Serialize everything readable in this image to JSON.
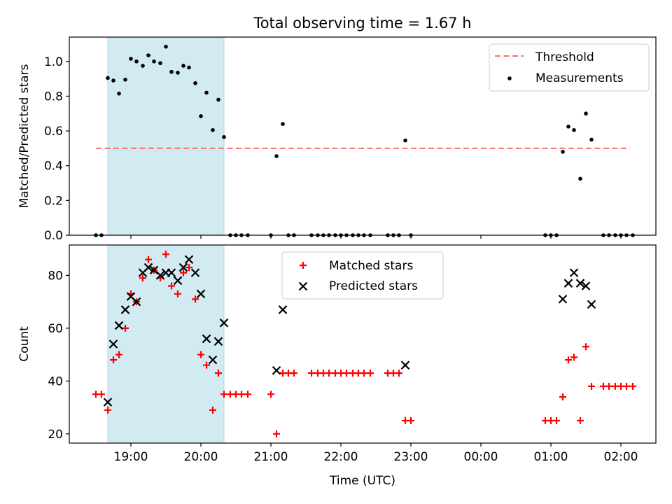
{
  "title": "Total observing time = 1.67 h",
  "colors": {
    "threshold": "#ff7070",
    "measurement": "#000000",
    "matched": "#ff0000",
    "predicted": "#000000",
    "shade": "#add8e6"
  },
  "chart_data": [
    {
      "type": "scatter",
      "ylabel": "Matched/Predicted stars",
      "xlabel": "",
      "ylim": [
        0,
        1.14
      ],
      "xlim": [
        18.12,
        26.5
      ],
      "yticks": [
        0.0,
        0.2,
        0.4,
        0.6,
        0.8,
        1.0
      ],
      "yticklabels": [
        "0.0",
        "0.2",
        "0.4",
        "0.6",
        "0.8",
        "1.0"
      ],
      "shaded_region": [
        18.67,
        20.33
      ],
      "threshold": {
        "name": "Threshold",
        "y": 0.5,
        "x": [
          18.5,
          26.13
        ]
      },
      "legend": {
        "position": "top-right",
        "entries": [
          "Threshold",
          "Measurements"
        ]
      },
      "series": [
        {
          "name": "Measurements",
          "x": [
            18.5,
            18.58,
            18.67,
            18.75,
            18.83,
            18.92,
            19.0,
            19.08,
            19.17,
            19.25,
            19.33,
            19.42,
            19.5,
            19.58,
            19.67,
            19.75,
            19.83,
            19.92,
            20.0,
            20.08,
            20.17,
            20.25,
            20.33,
            20.42,
            20.5,
            20.58,
            20.67,
            21.0,
            21.08,
            21.17,
            21.25,
            21.33,
            21.58,
            21.67,
            21.75,
            21.83,
            21.92,
            22.0,
            22.08,
            22.17,
            22.25,
            22.33,
            22.42,
            22.67,
            22.75,
            22.83,
            22.92,
            23.0,
            24.92,
            25.0,
            25.08,
            25.17,
            25.25,
            25.33,
            25.42,
            25.5,
            25.58,
            25.75,
            25.83,
            25.92,
            26.0,
            26.08,
            26.17
          ],
          "y": [
            0,
            0,
            0.905,
            0.89,
            0.815,
            0.895,
            1.015,
            1.0,
            0.975,
            1.035,
            1.0,
            0.99,
            1.085,
            0.94,
            0.935,
            0.975,
            0.965,
            0.875,
            0.685,
            0.82,
            0.605,
            0.78,
            0.565,
            0,
            0,
            0,
            0,
            0,
            0.455,
            0.64,
            0,
            0,
            0,
            0,
            0,
            0,
            0,
            0,
            0,
            0,
            0,
            0,
            0,
            0,
            0,
            0,
            0.545,
            0,
            0,
            0,
            0,
            0.48,
            0.625,
            0.605,
            0.325,
            0.7,
            0.55,
            0,
            0,
            0,
            0,
            0,
            0
          ]
        }
      ]
    },
    {
      "type": "scatter",
      "ylabel": "Count",
      "xlabel": "Time (UTC)",
      "ylim": [
        16.5,
        91.5
      ],
      "xlim": [
        18.12,
        26.5
      ],
      "yticks": [
        20,
        40,
        60,
        80
      ],
      "yticklabels": [
        "20",
        "40",
        "60",
        "80"
      ],
      "xticks": [
        19,
        20,
        21,
        22,
        23,
        24,
        25,
        26
      ],
      "xticklabels": [
        "19:00",
        "20:00",
        "21:00",
        "22:00",
        "23:00",
        "00:00",
        "01:00",
        "02:00"
      ],
      "shaded_region": [
        18.67,
        20.33
      ],
      "legend": {
        "position": "top-center",
        "entries": [
          "Matched stars",
          "Predicted stars"
        ]
      },
      "series": [
        {
          "name": "Matched stars",
          "marker": "plus",
          "x": [
            18.5,
            18.58,
            18.67,
            18.75,
            18.83,
            18.92,
            19.0,
            19.08,
            19.17,
            19.25,
            19.33,
            19.42,
            19.5,
            19.58,
            19.67,
            19.75,
            19.83,
            19.92,
            20.0,
            20.08,
            20.17,
            20.25,
            20.33,
            20.42,
            20.5,
            20.58,
            20.67,
            21.0,
            21.08,
            21.17,
            21.25,
            21.33,
            21.58,
            21.67,
            21.75,
            21.83,
            21.92,
            22.0,
            22.08,
            22.17,
            22.25,
            22.33,
            22.42,
            22.67,
            22.75,
            22.83,
            22.92,
            23.0,
            24.92,
            25.0,
            25.08,
            25.17,
            25.25,
            25.33,
            25.42,
            25.5,
            25.58,
            25.75,
            25.83,
            25.92,
            26.0,
            26.08,
            26.17
          ],
          "y": [
            35,
            35,
            29,
            48,
            50,
            60,
            73,
            70,
            79,
            86,
            82,
            79,
            88,
            76,
            73,
            81,
            83,
            71,
            50,
            46,
            29,
            43,
            35,
            35,
            35,
            35,
            35,
            35,
            20,
            43,
            43,
            43,
            43,
            43,
            43,
            43,
            43,
            43,
            43,
            43,
            43,
            43,
            43,
            43,
            43,
            43,
            25,
            25,
            25,
            25,
            25,
            34,
            48,
            49,
            25,
            53,
            38,
            38,
            38,
            38,
            38,
            38,
            38
          ]
        },
        {
          "name": "Predicted stars",
          "marker": "x",
          "x": [
            18.67,
            18.75,
            18.83,
            18.92,
            19.0,
            19.08,
            19.17,
            19.25,
            19.33,
            19.42,
            19.5,
            19.58,
            19.67,
            19.75,
            19.83,
            19.92,
            20.0,
            20.08,
            20.17,
            20.25,
            20.33,
            21.08,
            21.17,
            22.92,
            25.17,
            25.25,
            25.33,
            25.42,
            25.5,
            25.58
          ],
          "y": [
            32,
            54,
            61,
            67,
            72,
            70,
            81,
            83,
            82,
            80,
            81,
            81,
            78,
            83,
            86,
            81,
            73,
            56,
            48,
            55,
            62,
            44,
            67,
            46,
            71,
            77,
            81,
            77,
            76,
            69
          ]
        }
      ]
    }
  ]
}
